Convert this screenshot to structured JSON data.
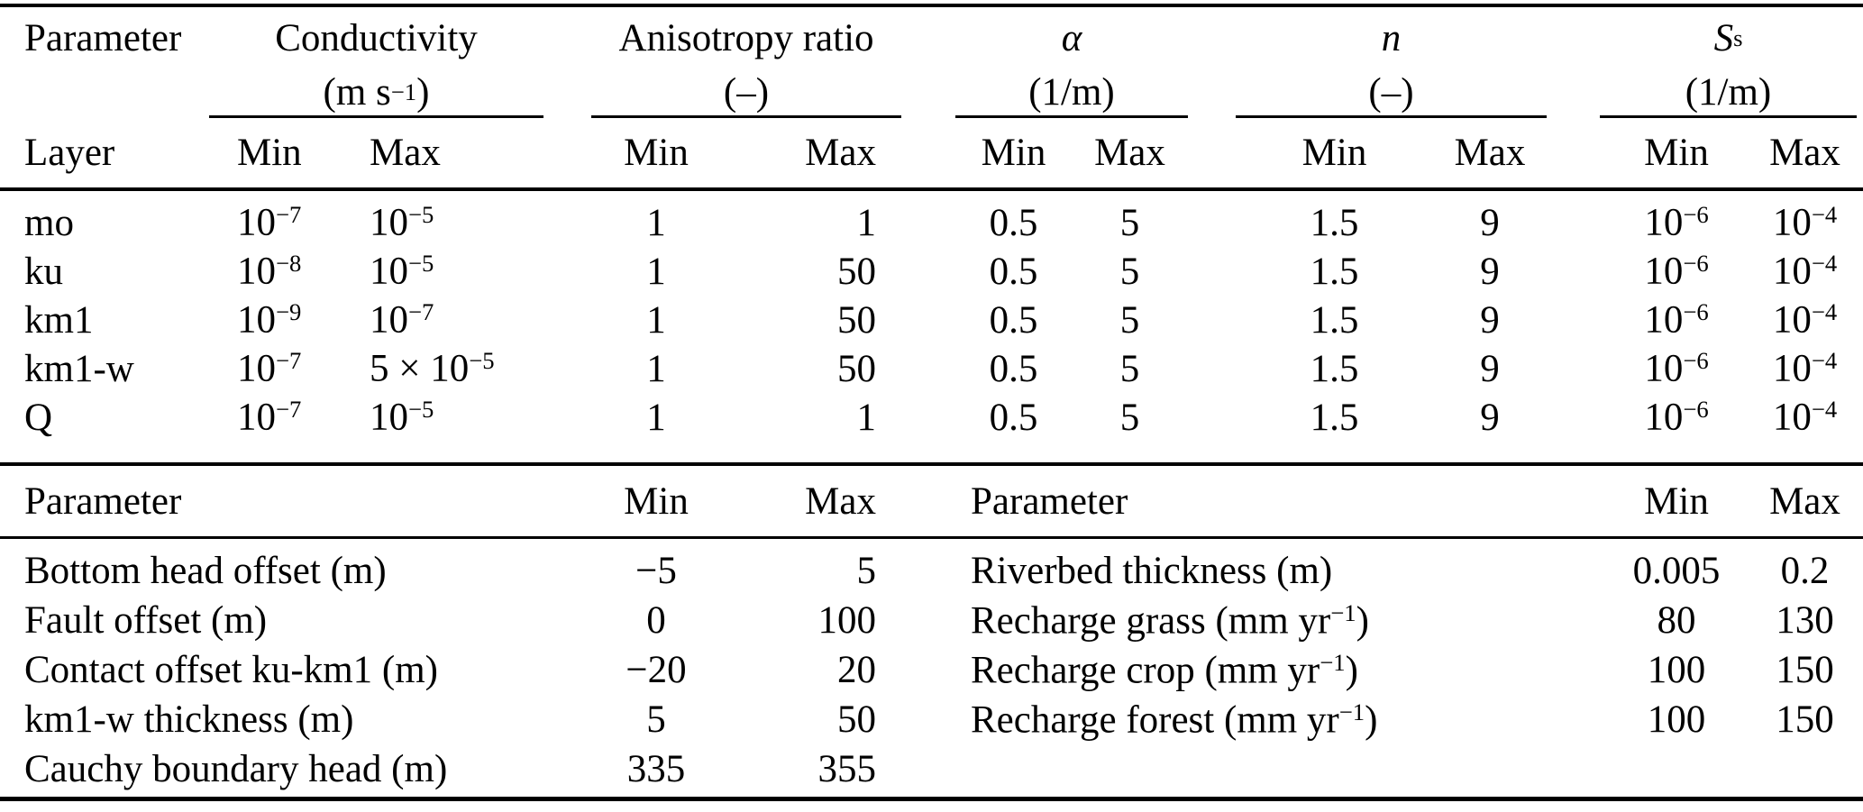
{
  "table": {
    "section1": {
      "param_header": "Parameter",
      "layer_header": "Layer",
      "min": "Min",
      "max": "Max",
      "groups": [
        {
          "title": "Conductivity",
          "unit": "(m s^{−1})"
        },
        {
          "title": "Anisotropy ratio",
          "unit": "(–)"
        },
        {
          "title": "*α*",
          "unit": "(1/m)"
        },
        {
          "title": "*n*",
          "unit": "(–)"
        },
        {
          "title": "*S*_{s}",
          "unit": "(1/m)"
        }
      ],
      "rows": [
        {
          "layer": "mo",
          "values": [
            "10^{−7}",
            "10^{−5}",
            "1",
            "1",
            "0.5",
            "5",
            "1.5",
            "9",
            "10^{−6}",
            "10^{−4}"
          ]
        },
        {
          "layer": "ku",
          "values": [
            "10^{−8}",
            "10^{−5}",
            "1",
            "50",
            "0.5",
            "5",
            "1.5",
            "9",
            "10^{−6}",
            "10^{−4}"
          ]
        },
        {
          "layer": "km1",
          "values": [
            "10^{−9}",
            "10^{−7}",
            "1",
            "50",
            "0.5",
            "5",
            "1.5",
            "9",
            "10^{−6}",
            "10^{−4}"
          ]
        },
        {
          "layer": "km1-w",
          "values": [
            "10^{−7}",
            "5 × 10^{−5}",
            "1",
            "50",
            "0.5",
            "5",
            "1.5",
            "9",
            "10^{−6}",
            "10^{−4}"
          ]
        },
        {
          "layer": "Q",
          "values": [
            "10^{−7}",
            "10^{−5}",
            "1",
            "1",
            "0.5",
            "5",
            "1.5",
            "9",
            "10^{−6}",
            "10^{−4}"
          ]
        }
      ]
    },
    "section2": {
      "param_header": "Parameter",
      "min": "Min",
      "max": "Max",
      "left_rows": [
        {
          "param": "Bottom head offset (m)",
          "min": "−5",
          "max": "5"
        },
        {
          "param": "Fault offset (m)",
          "min": "0",
          "max": "100"
        },
        {
          "param": "Contact offset ku-km1 (m)",
          "min": "−20",
          "max": "20"
        },
        {
          "param": "km1-w thickness (m)",
          "min": "5",
          "max": "50"
        },
        {
          "param": "Cauchy boundary head (m)",
          "min": "335",
          "max": "355"
        }
      ],
      "right_rows": [
        {
          "param": "Riverbed thickness (m)",
          "min": "0.005",
          "max": "0.2"
        },
        {
          "param": "Recharge grass (mm yr^{−1})",
          "min": "80",
          "max": "130"
        },
        {
          "param": "Recharge crop (mm yr^{−1})",
          "min": "100",
          "max": "150"
        },
        {
          "param": "Recharge forest (mm yr^{−1})",
          "min": "100",
          "max": "150"
        }
      ]
    }
  }
}
